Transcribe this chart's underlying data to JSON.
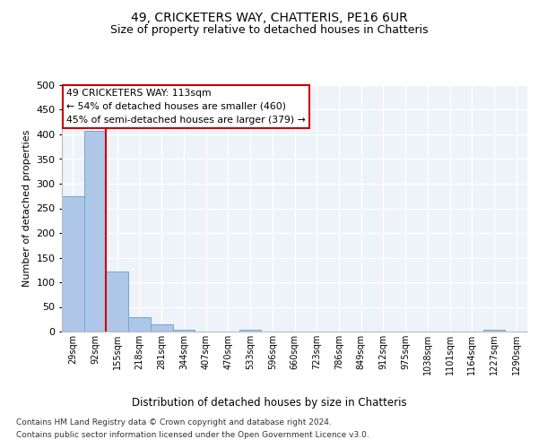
{
  "title1": "49, CRICKETERS WAY, CHATTERIS, PE16 6UR",
  "title2": "Size of property relative to detached houses in Chatteris",
  "xlabel": "Distribution of detached houses by size in Chatteris",
  "ylabel": "Number of detached properties",
  "categories": [
    "29sqm",
    "92sqm",
    "155sqm",
    "218sqm",
    "281sqm",
    "344sqm",
    "407sqm",
    "470sqm",
    "533sqm",
    "596sqm",
    "660sqm",
    "723sqm",
    "786sqm",
    "849sqm",
    "912sqm",
    "975sqm",
    "1038sqm",
    "1101sqm",
    "1164sqm",
    "1227sqm",
    "1290sqm"
  ],
  "values": [
    275,
    408,
    122,
    29,
    14,
    4,
    0,
    0,
    3,
    0,
    0,
    0,
    0,
    0,
    0,
    0,
    0,
    0,
    0,
    4,
    0
  ],
  "bar_color": "#aec6e8",
  "bar_edge_color": "#6baad0",
  "vline_x": 1.5,
  "vline_color": "#cc0000",
  "annotation_text": "49 CRICKETERS WAY: 113sqm\n← 54% of detached houses are smaller (460)\n45% of semi-detached houses are larger (379) →",
  "annotation_box_color": "#ffffff",
  "annotation_box_edge_color": "#cc0000",
  "footer1": "Contains HM Land Registry data © Crown copyright and database right 2024.",
  "footer2": "Contains public sector information licensed under the Open Government Licence v3.0.",
  "ylim": [
    0,
    500
  ],
  "yticks": [
    0,
    50,
    100,
    150,
    200,
    250,
    300,
    350,
    400,
    450,
    500
  ],
  "bg_color": "#eef2f9",
  "grid_color": "#ffffff",
  "title1_fontsize": 10,
  "title2_fontsize": 9
}
